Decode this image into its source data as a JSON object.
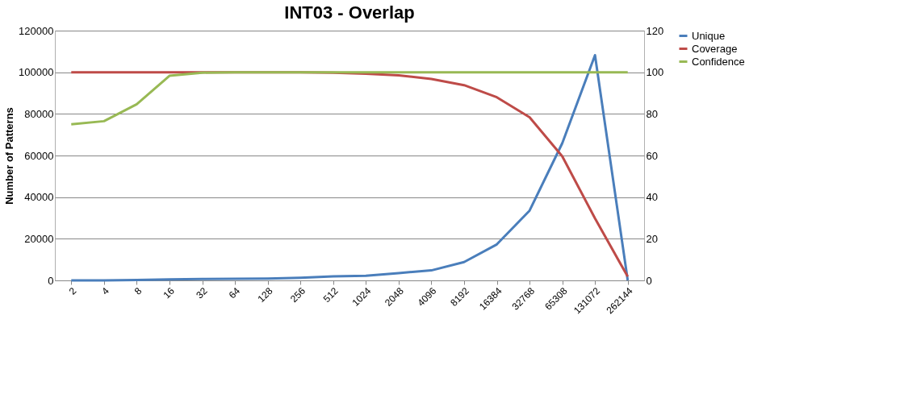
{
  "chart_data": {
    "type": "line",
    "title": "INT03 - Overlap",
    "ylabel": "Number of Patterns",
    "categories": [
      "2",
      "4",
      "8",
      "16",
      "32",
      "64",
      "128",
      "256",
      "512",
      "1024",
      "2048",
      "4096",
      "8192",
      "16384",
      "32768",
      "65308",
      "131072",
      "262144"
    ],
    "ylim": [
      0,
      120000
    ],
    "yticks": [
      0,
      20000,
      40000,
      60000,
      80000,
      100000,
      120000
    ],
    "y2lim": [
      0,
      120
    ],
    "y2ticks": [
      0,
      20,
      40,
      60,
      80,
      100,
      120
    ],
    "grid": "y",
    "legend": "right",
    "marker": "none",
    "line_style": "solid",
    "series": [
      {
        "name": "Unique",
        "color": "#4a7ebb",
        "values": [
          0,
          0,
          200,
          500,
          700,
          800,
          900,
          1300,
          1900,
          2200,
          3500,
          4800,
          8800,
          17300,
          33500,
          65900,
          108200,
          0
        ]
      },
      {
        "name": "Coverage",
        "color": "#be4b48",
        "axis": "y2",
        "values": [
          100,
          100,
          100,
          100,
          100,
          100,
          100,
          100,
          99.8,
          99.3,
          98.5,
          96.8,
          93.8,
          88,
          78.4,
          59.6,
          29.8,
          1.8
        ]
      },
      {
        "name": "Confidence",
        "color": "#98b954",
        "axis": "y2",
        "values": [
          75,
          76.5,
          84.6,
          98.3,
          99.8,
          100,
          100,
          100,
          100,
          100,
          100,
          100,
          100,
          100,
          100,
          100,
          100,
          100
        ]
      }
    ]
  }
}
